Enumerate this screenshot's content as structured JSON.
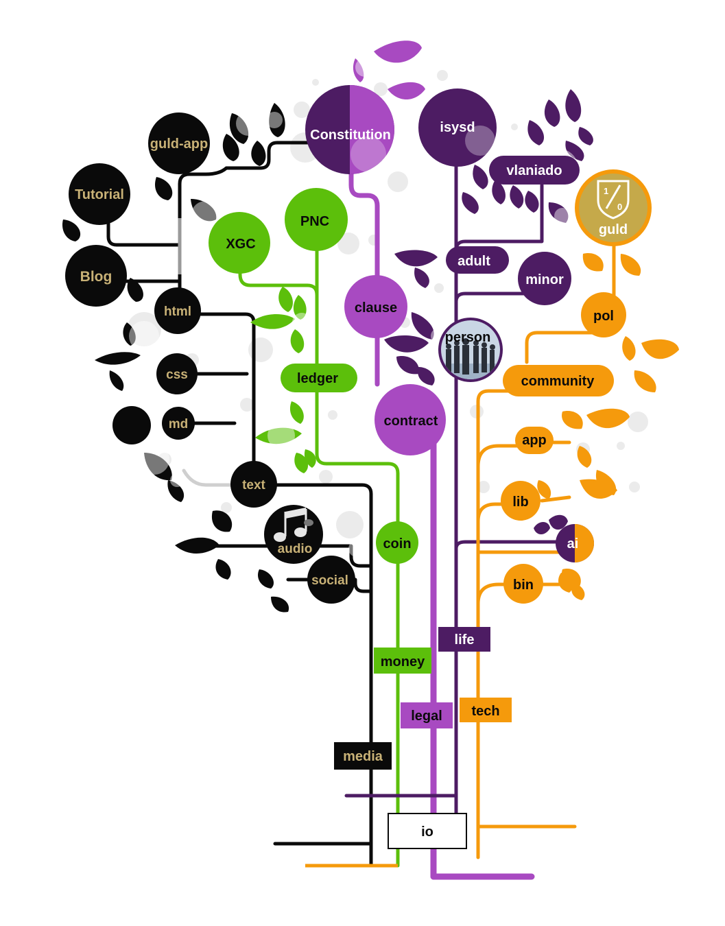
{
  "colors": {
    "media": "#0a0a0a",
    "money": "#5cbf0b",
    "legal": "#a84ac1",
    "life": "#4d1c63",
    "tech": "#f59a0c",
    "gold_text": "#c8b176",
    "white": "#ffffff"
  },
  "root": {
    "label": "io"
  },
  "branches": {
    "media": "media",
    "money": "money",
    "legal": "legal",
    "life": "life",
    "tech": "tech"
  },
  "media_nodes": {
    "guld_app": "guld-app",
    "tutorial": "Tutorial",
    "blog": "Blog",
    "html": "html",
    "css": "css",
    "md": "md",
    "text": "text",
    "audio": "audio",
    "social": "social"
  },
  "money_nodes": {
    "xgc": "XGC",
    "pnc": "PNC",
    "ledger": "ledger",
    "coin": "coin"
  },
  "legal_nodes": {
    "constitution": "Constitution",
    "clause": "clause",
    "contract": "contract"
  },
  "life_nodes": {
    "isysd": "isysd",
    "vlaniado": "vlaniado",
    "adult": "adult",
    "minor": "minor",
    "person": "person"
  },
  "tech_nodes": {
    "guld": "guld",
    "pol": "pol",
    "community": "community",
    "app": "app",
    "lib": "lib",
    "ai": "ai",
    "bin": "bin"
  },
  "icons": {
    "audio": "music-notes-icon",
    "person": "people-group-icon",
    "guld": "guld-shield-logo-icon"
  }
}
